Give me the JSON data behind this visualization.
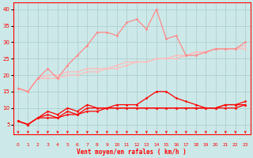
{
  "x": [
    0,
    1,
    2,
    3,
    4,
    5,
    6,
    7,
    8,
    9,
    10,
    11,
    12,
    13,
    14,
    15,
    16,
    17,
    18,
    19,
    20,
    21,
    22,
    23
  ],
  "line_light1": [
    16,
    15,
    19,
    19,
    19,
    20,
    20,
    21,
    21,
    22,
    22,
    23,
    24,
    24,
    25,
    25,
    25,
    26,
    27,
    27,
    28,
    28,
    28,
    29
  ],
  "line_light2": [
    16,
    15,
    19,
    20,
    20,
    21,
    21,
    22,
    22,
    22,
    23,
    24,
    24,
    24,
    25,
    25,
    26,
    26,
    27,
    27,
    28,
    28,
    28,
    28
  ],
  "line_mid": [
    16,
    15,
    19,
    22,
    19,
    23,
    26,
    29,
    33,
    33,
    32,
    36,
    37,
    34,
    40,
    31,
    32,
    26,
    26,
    27,
    28,
    28,
    28,
    30
  ],
  "line_dark1": [
    6,
    5,
    7,
    7,
    7,
    8,
    8,
    9,
    9,
    10,
    11,
    11,
    11,
    13,
    15,
    15,
    13,
    12,
    11,
    10,
    10,
    11,
    11,
    12
  ],
  "line_dark2": [
    6,
    5,
    7,
    9,
    8,
    10,
    9,
    11,
    10,
    10,
    10,
    10,
    10,
    10,
    10,
    10,
    10,
    10,
    10,
    10,
    10,
    11,
    11,
    11
  ],
  "line_dark3": [
    6,
    5,
    7,
    8,
    7,
    9,
    8,
    10,
    10,
    10,
    10,
    10,
    10,
    10,
    10,
    10,
    10,
    10,
    10,
    10,
    10,
    10,
    10,
    11
  ],
  "bg_color": "#cce8e8",
  "grid_color": "#aacccc",
  "xlabel": "Vent moyen/en rafales ( km/h )",
  "ylim": [
    2,
    42
  ],
  "xlim": [
    -0.5,
    23.5
  ],
  "yticks": [
    5,
    10,
    15,
    20,
    25,
    30,
    35,
    40
  ],
  "color_light": "#ffbbbb",
  "color_mid": "#ff8888",
  "color_dark": "#ff0000"
}
